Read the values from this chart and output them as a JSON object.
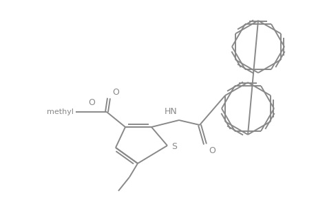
{
  "bg_color": "#ffffff",
  "line_color": "#888888",
  "line_width": 1.4,
  "figsize": [
    4.6,
    3.0
  ],
  "dpi": 100,
  "xlim": [
    0,
    460
  ],
  "ylim": [
    0,
    300
  ]
}
